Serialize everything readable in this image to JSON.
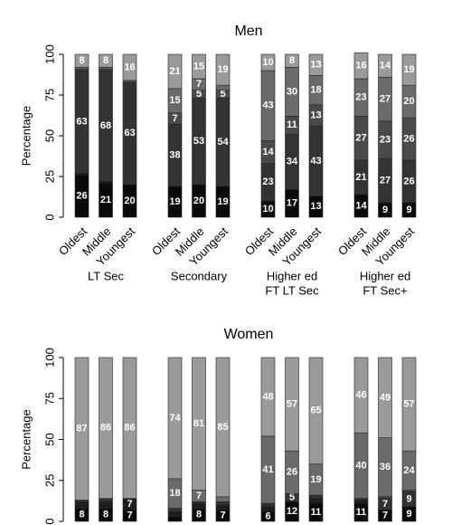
{
  "chart_data": [
    {
      "type": "bar",
      "stacked": true,
      "title": "Men",
      "ylabel": "Percentage",
      "ylim": [
        0,
        100
      ],
      "yticks": [
        0,
        25,
        50,
        75,
        100
      ],
      "categories": [
        "Oldest",
        "Middle",
        "Youngest",
        "Oldest",
        "Middle",
        "Youngest",
        "Oldest",
        "Middle",
        "Youngest",
        "Oldest",
        "Middle",
        "Youngest"
      ],
      "groups": [
        [
          "LT Sec"
        ],
        [
          "Secondary"
        ],
        [
          "Higher ed",
          "FT LT Sec"
        ],
        [
          "Higher ed",
          "FT Sec+"
        ]
      ],
      "series": [
        {
          "color": "#0a0a0a",
          "values": [
            26,
            21,
            20,
            19,
            20,
            19,
            10,
            17,
            13,
            14,
            9,
            9
          ]
        },
        {
          "color": "#1e1e1e",
          "values": [
            1,
            1,
            0,
            0,
            0,
            0,
            0,
            0,
            0,
            0,
            0,
            0
          ]
        },
        {
          "color": "#333333",
          "values": [
            63,
            68,
            63,
            38,
            53,
            54,
            23,
            34,
            43,
            21,
            27,
            26
          ]
        },
        {
          "color": "#4a4a4a",
          "values": [
            1,
            1,
            0,
            7,
            5,
            5,
            14,
            11,
            13,
            27,
            23,
            26
          ]
        },
        {
          "color": "#6a6a6a",
          "values": [
            1,
            1,
            1,
            15,
            7,
            3,
            43,
            30,
            18,
            23,
            27,
            20
          ]
        },
        {
          "color": "#9a9a9a",
          "values": [
            8,
            8,
            16,
            21,
            15,
            19,
            10,
            8,
            13,
            16,
            14,
            19
          ]
        }
      ]
    },
    {
      "type": "bar",
      "stacked": true,
      "title": "Women",
      "ylabel": "Percentage",
      "ylim": [
        0,
        100
      ],
      "yticks": [
        0,
        25,
        50,
        75,
        100
      ],
      "categories": [
        null,
        null,
        null,
        null,
        null,
        null,
        null,
        null,
        null,
        null,
        null,
        null
      ],
      "series": [
        {
          "color": "#0a0a0a",
          "values": [
            8,
            8,
            7,
            3,
            8,
            7,
            6,
            12,
            11,
            11,
            7,
            9
          ]
        },
        {
          "color": "#1e1e1e",
          "values": [
            4,
            4,
            7,
            3,
            3,
            3,
            3,
            0,
            3,
            2,
            0,
            0
          ]
        },
        {
          "color": "#333333",
          "values": [
            1,
            2,
            0,
            2,
            1,
            2,
            2,
            5,
            2,
            1,
            7,
            9
          ]
        },
        {
          "color": "#4a4a4a",
          "values": [
            0,
            0,
            0,
            0,
            0,
            0,
            0,
            0,
            0,
            0,
            1,
            1
          ]
        },
        {
          "color": "#6a6a6a",
          "values": [
            0,
            0,
            0,
            18,
            7,
            3,
            41,
            26,
            19,
            40,
            36,
            24
          ]
        },
        {
          "color": "#9a9a9a",
          "values": [
            87,
            86,
            86,
            74,
            81,
            85,
            48,
            57,
            65,
            46,
            49,
            57
          ]
        }
      ]
    }
  ]
}
